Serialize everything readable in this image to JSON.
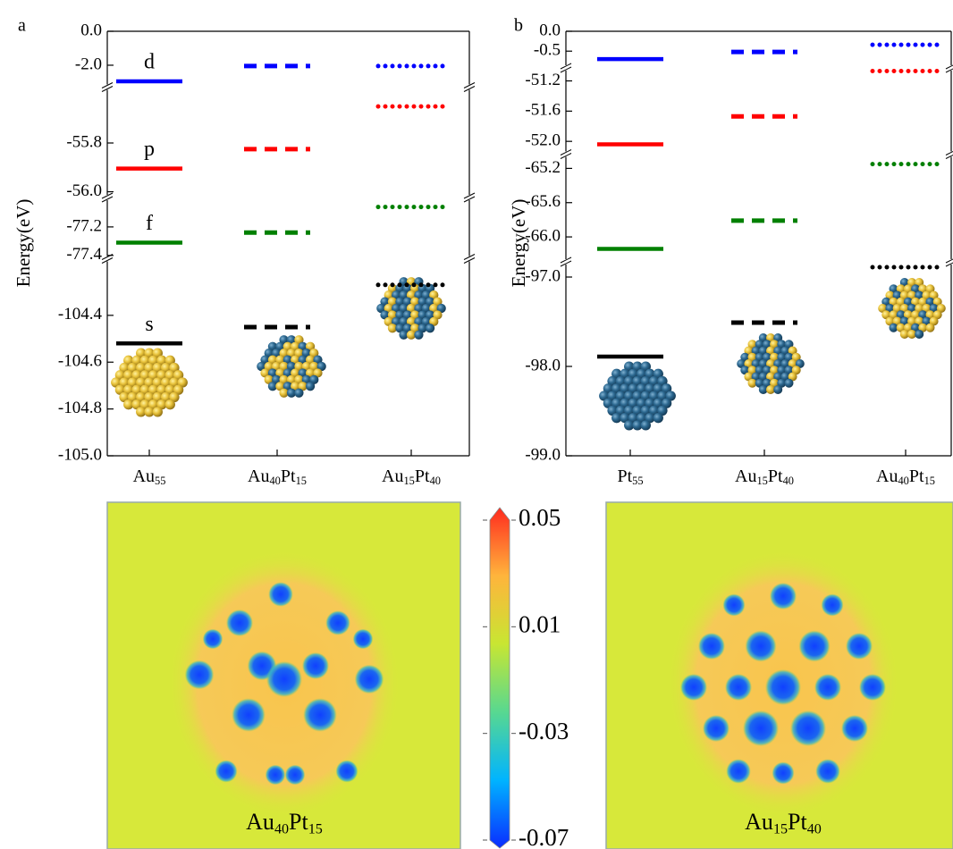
{
  "chart_data": [
    {
      "type": "energy-levels",
      "panel": "a",
      "y_label": "Energy(eV)",
      "categories": [
        [
          "Au",
          "55"
        ],
        [
          "Au",
          "40",
          "Pt",
          "15"
        ],
        [
          "Au",
          "15",
          "Pt",
          "40"
        ]
      ],
      "linestyles": [
        "solid",
        "dashed",
        "dotted"
      ],
      "segments": [
        {
          "ylim": [
            -105.0,
            -104.16
          ],
          "yticks": [
            {
              "value": -105.0,
              "label": "-105.0"
            },
            -104.8,
            -104.6,
            -104.4
          ]
        },
        {
          "ylim": [
            -77.42,
            -77.0
          ],
          "yticks": [
            -77.4,
            -77.2
          ]
        },
        {
          "ylim": [
            -56.02,
            -55.58
          ],
          "yticks": [
            {
              "value": -56.0,
              "label": "-56.0"
            },
            -55.8
          ]
        },
        {
          "ylim": [
            -3.16,
            0.0
          ],
          "yticks": [
            {
              "value": -2.0,
              "label": "-2.0"
            },
            {
              "value": 0.0,
              "label": "0.0"
            }
          ]
        }
      ],
      "series": [
        {
          "name": "d",
          "color": "#0000ff",
          "values": [
            -2.95,
            -2.05,
            -2.05
          ]
        },
        {
          "name": "p",
          "color": "#ff0000",
          "values": [
            -55.905,
            -55.825,
            -55.65
          ]
        },
        {
          "name": "f",
          "color": "#008000",
          "values": [
            -77.31,
            -77.24,
            -77.06
          ]
        },
        {
          "name": "s",
          "color": "#000000",
          "values": [
            -104.52,
            -104.45,
            -104.27
          ]
        }
      ]
    },
    {
      "type": "energy-levels",
      "panel": "b",
      "y_label": "Energy(eV)",
      "categories": [
        [
          "Pt",
          "55"
        ],
        [
          "Au",
          "15",
          "Pt",
          "40"
        ],
        [
          "Au",
          "40",
          "Pt",
          "15"
        ]
      ],
      "linestyles": [
        "solid",
        "dashed",
        "dotted"
      ],
      "segments": [
        {
          "ylim": [
            -99.0,
            -96.86
          ],
          "yticks": [
            {
              "value": -99.0,
              "label": "-99.0"
            },
            {
              "value": -98.0,
              "label": "-98.0"
            },
            {
              "value": -97.0,
              "label": "-97.0"
            }
          ]
        },
        {
          "ylim": [
            -66.26,
            -65.06
          ],
          "yticks": [
            {
              "value": -66.0,
              "label": "-66.0"
            },
            -65.6,
            -65.2
          ]
        },
        {
          "ylim": [
            -52.14,
            -51.04
          ],
          "yticks": [
            {
              "value": -52.0,
              "label": "-52.0"
            },
            -51.6,
            -51.2
          ]
        },
        {
          "ylim": [
            -0.9,
            0.0
          ],
          "yticks": [
            -0.5,
            {
              "value": 0.0,
              "label": "0.0"
            }
          ]
        }
      ],
      "series": [
        {
          "color": "#0000ff",
          "values": [
            -0.7,
            -0.52,
            -0.34
          ]
        },
        {
          "color": "#ff0000",
          "values": [
            -52.04,
            -51.67,
            -51.07
          ]
        },
        {
          "color": "#008000",
          "values": [
            -66.14,
            -65.81,
            -65.15
          ]
        },
        {
          "color": "#000000",
          "values": [
            -97.89,
            -97.51,
            -96.89
          ]
        }
      ]
    },
    {
      "type": "colorbar",
      "ylim": [
        -0.07,
        0.05
      ],
      "yticks": [
        0.05,
        0.01,
        -0.03,
        -0.07
      ],
      "colors": [
        "#0a2cff",
        "#00b4ff",
        "#58d890",
        "#c8e632",
        "#ffb43c",
        "#ff2a1e"
      ]
    }
  ],
  "maps": [
    {
      "label": [
        "Au",
        "40",
        "Pt",
        "15"
      ]
    },
    {
      "label": [
        "Au",
        "15",
        "Pt",
        "40"
      ]
    }
  ]
}
